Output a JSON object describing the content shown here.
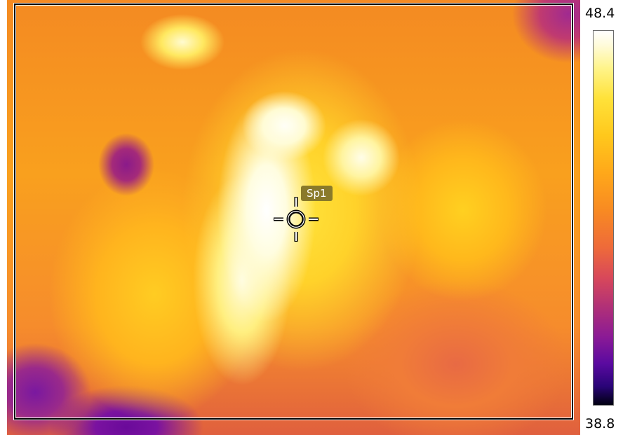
{
  "thermal_view": {
    "spot": {
      "label": "Sp1"
    }
  },
  "scale": {
    "max": "48.4",
    "min": "38.8",
    "palette": "iron",
    "colors": [
      "#ffffff",
      "#fff48a",
      "#ffc81c",
      "#f88a22",
      "#d8485a",
      "#8a1a96",
      "#000010"
    ]
  }
}
